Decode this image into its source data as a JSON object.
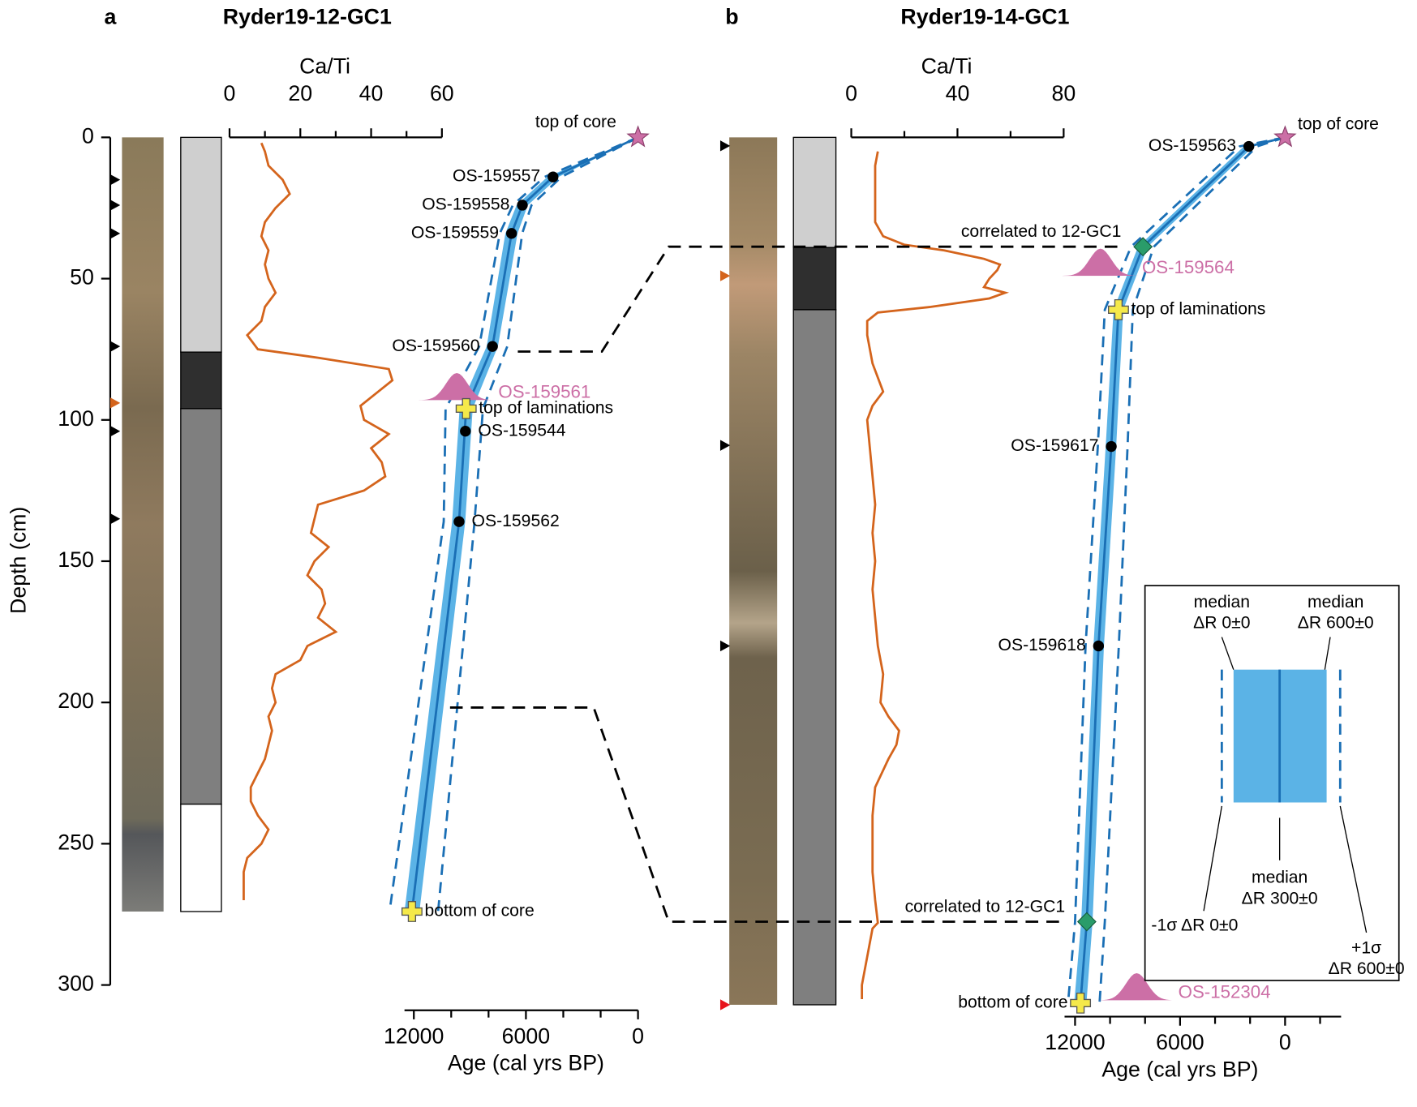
{
  "chart_data": [
    {
      "type": "age-depth",
      "panel": "a",
      "title": "Ryder19-12-GC1",
      "ylabel": "Depth (cm)",
      "ylim": [
        0,
        300
      ],
      "yticks": [
        0,
        50,
        100,
        150,
        200,
        250,
        300
      ],
      "core_bottom": 274,
      "sample_markers": [
        {
          "depth": 15,
          "color": "#000000"
        },
        {
          "depth": 24,
          "color": "#000000"
        },
        {
          "depth": 34,
          "color": "#000000"
        },
        {
          "depth": 74,
          "color": "#000000"
        },
        {
          "depth": 94,
          "color": "#d4641c"
        },
        {
          "depth": 104,
          "color": "#000000"
        },
        {
          "depth": 135,
          "color": "#000000"
        }
      ],
      "units": [
        {
          "top": 0,
          "bottom": 76,
          "color": "#cfcfcf"
        },
        {
          "top": 76,
          "bottom": 96,
          "color": "#2f2f2f"
        },
        {
          "top": 96,
          "bottom": 236,
          "color": "#7f7f7f"
        },
        {
          "top": 236,
          "bottom": 274,
          "color": "#ffffff"
        }
      ],
      "cati_label": "Ca/Ti",
      "cati_lim": [
        0,
        60
      ],
      "cati_ticks": [
        0,
        20,
        40,
        60
      ],
      "cati_minor": [
        10,
        30,
        50
      ],
      "cati": {
        "color": "#d4641c",
        "depth": [
          2,
          5,
          10,
          15,
          20,
          25,
          30,
          35,
          40,
          45,
          50,
          55,
          60,
          65,
          70,
          75,
          78,
          82,
          86,
          90,
          95,
          100,
          105,
          110,
          115,
          120,
          125,
          130,
          135,
          140,
          145,
          150,
          155,
          160,
          165,
          170,
          175,
          180,
          185,
          190,
          195,
          200,
          205,
          210,
          215,
          220,
          225,
          230,
          235,
          240,
          245,
          250,
          255,
          260,
          265,
          270
        ],
        "values": [
          9,
          10,
          11,
          15,
          17,
          13,
          10,
          9,
          11,
          10,
          11,
          13,
          10,
          9,
          5,
          8,
          25,
          45,
          46,
          42,
          37,
          38,
          45,
          40,
          43,
          44,
          38,
          25,
          24,
          23,
          28,
          24,
          22,
          26,
          27,
          25,
          30,
          22,
          20,
          13,
          12,
          13,
          11,
          12,
          11,
          10,
          8,
          6,
          6,
          8,
          11,
          9,
          5,
          4,
          4,
          4
        ]
      },
      "xlabel": "Age (cal yrs BP)",
      "xlim": [
        12500,
        0
      ],
      "xticks": [
        12000,
        6000,
        0
      ],
      "xminor": [
        10000,
        8000,
        4000,
        2000
      ],
      "age_model": {
        "band_color": "#5bb3e6",
        "line_color": "#1a6fb5",
        "depth": [
          0,
          14,
          24,
          34,
          74,
          96,
          136,
          274
        ],
        "median": [
          0,
          4550,
          6190,
          6770,
          7790,
          9200,
          9580,
          12100
        ],
        "range_young": [
          0,
          4250,
          5900,
          6450,
          7500,
          8850,
          9250,
          11700
        ],
        "range_old": [
          0,
          4850,
          6500,
          7100,
          8100,
          9550,
          9950,
          12500
        ],
        "sigma_young": [
          0,
          4100,
          5700,
          6200,
          7000,
          8300,
          8750,
          10700
        ],
        "sigma_old": [
          0,
          5000,
          6700,
          7400,
          8500,
          10300,
          10400,
          13300
        ]
      },
      "dates": [
        {
          "label": "top of core",
          "kind": "star",
          "age": 0,
          "depth": 0,
          "label_side": "left-above"
        },
        {
          "label": "OS-159557",
          "kind": "dot",
          "age": 4550,
          "depth": 14,
          "label_side": "left"
        },
        {
          "label": "OS-159558",
          "kind": "dot",
          "age": 6190,
          "depth": 24,
          "label_side": "left"
        },
        {
          "label": "OS-159559",
          "kind": "dot",
          "age": 6770,
          "depth": 34,
          "label_side": "left"
        },
        {
          "label": "OS-159560",
          "kind": "dot",
          "age": 7790,
          "depth": 74,
          "label_side": "left"
        },
        {
          "label": "OS-159561",
          "kind": "prob",
          "age": 9700,
          "depth": 93,
          "label_side": "right"
        },
        {
          "label": "top of laminations",
          "kind": "cross",
          "age": 9200,
          "depth": 96,
          "label_side": "right"
        },
        {
          "label": "OS-159544",
          "kind": "dot",
          "age": 9240,
          "depth": 104,
          "label_side": "right"
        },
        {
          "label": "OS-159562",
          "kind": "dot",
          "age": 9580,
          "depth": 136,
          "label_side": "right"
        },
        {
          "label": "bottom of core",
          "kind": "cross",
          "age": 12100,
          "depth": 274,
          "label_side": "right"
        }
      ]
    },
    {
      "type": "age-depth",
      "panel": "b",
      "title": "Ryder19-14-GC1",
      "ylim": [
        0,
        300
      ],
      "core_bottom": 307,
      "sample_markers": [
        {
          "depth": 3,
          "color": "#000000"
        },
        {
          "depth": 49,
          "color": "#d4641c"
        },
        {
          "depth": 109,
          "color": "#000000"
        },
        {
          "depth": 180,
          "color": "#000000"
        },
        {
          "depth": 307,
          "color": "#e8141c"
        }
      ],
      "units": [
        {
          "top": 0,
          "bottom": 39,
          "color": "#cfcfcf"
        },
        {
          "top": 39,
          "bottom": 61,
          "color": "#2f2f2f"
        },
        {
          "top": 61,
          "bottom": 307,
          "color": "#7f7f7f"
        }
      ],
      "cati_label": "Ca/Ti",
      "cati_lim": [
        0,
        80
      ],
      "cati_ticks": [
        0,
        40,
        80
      ],
      "cati_minor": [
        20,
        60
      ],
      "cati": {
        "color": "#d4641c",
        "depth": [
          5,
          10,
          20,
          30,
          35,
          38,
          40,
          43,
          45,
          47,
          50,
          53,
          55,
          57,
          60,
          62,
          65,
          70,
          80,
          85,
          90,
          95,
          100,
          110,
          120,
          130,
          140,
          150,
          160,
          170,
          180,
          190,
          200,
          205,
          210,
          215,
          220,
          230,
          240,
          250,
          260,
          270,
          278,
          280,
          290,
          300,
          305
        ],
        "values": [
          10,
          9,
          9,
          9,
          12,
          20,
          35,
          50,
          56,
          55,
          52,
          50,
          58,
          52,
          30,
          10,
          6,
          6,
          8,
          10,
          12,
          8,
          6,
          7,
          8,
          9,
          8,
          9,
          8,
          9,
          10,
          12,
          11,
          14,
          18,
          17,
          14,
          9,
          8,
          8,
          8,
          9,
          10,
          8,
          6,
          4,
          4
        ]
      },
      "xlabel": "Age (cal yrs BP)",
      "xlim": [
        12600,
        -3200
      ],
      "xticks": [
        12000,
        6000,
        0
      ],
      "xminor": [
        10000,
        8000,
        4000,
        2000,
        -2000
      ],
      "age_model": {
        "band_color": "#5bb3e6",
        "line_color": "#1a6fb5",
        "depth": [
          0,
          3.2,
          38.7,
          61,
          109.4,
          180,
          277.6,
          306.4
        ],
        "median": [
          0,
          2070,
          8120,
          9520,
          9930,
          10660,
          11330,
          11690
        ],
        "range_young": [
          0,
          1800,
          7850,
          9250,
          9650,
          10350,
          11000,
          11350
        ],
        "range_old": [
          0,
          2350,
          8400,
          9800,
          10250,
          10950,
          11650,
          12050
        ],
        "sigma_young": [
          0,
          1600,
          7500,
          8700,
          9000,
          9500,
          10300,
          10600
        ],
        "sigma_old": [
          0,
          2600,
          8800,
          10300,
          10700,
          11400,
          12000,
          12400
        ]
      },
      "dates": [
        {
          "label": "top of core",
          "kind": "star",
          "age": 0,
          "depth": 0,
          "label_side": "right"
        },
        {
          "label": "OS-159563",
          "kind": "dot",
          "age": 2070,
          "depth": 3.2,
          "label_side": "left"
        },
        {
          "label": "correlated to 12-GC1",
          "kind": "diamond",
          "age": 8120,
          "depth": 38.7,
          "label_side": "left-above"
        },
        {
          "label": "OS-159564",
          "kind": "prob",
          "age": 10550,
          "depth": 49,
          "label_side": "right"
        },
        {
          "label": "top of laminations",
          "kind": "cross",
          "age": 9520,
          "depth": 61,
          "label_side": "right"
        },
        {
          "label": "OS-159617",
          "kind": "dot",
          "age": 9930,
          "depth": 109.4,
          "label_side": "left"
        },
        {
          "label": "OS-159618",
          "kind": "dot",
          "age": 10660,
          "depth": 180,
          "label_side": "left"
        },
        {
          "label": "correlated to 12-GC1",
          "kind": "diamond",
          "age": 11330,
          "depth": 277.6,
          "label_side": "left-above"
        },
        {
          "label": "OS-152304",
          "kind": "prob",
          "age": 8480,
          "depth": 305.4,
          "label_side": "right"
        },
        {
          "label": "bottom of core",
          "kind": "cross",
          "age": 11690,
          "depth": 306.4,
          "label_side": "left"
        }
      ]
    }
  ],
  "correlations": [
    {
      "depth_a": 75.8,
      "depth_b": 38.7
    },
    {
      "depth_a": 201.8,
      "depth_b": 277.6
    }
  ],
  "inset_legend": {
    "items": [
      {
        "lines": [
          "median",
          "ΔR 0±0"
        ]
      },
      {
        "lines": [
          "median",
          "ΔR 600±0"
        ]
      },
      {
        "lines": [
          "median",
          "ΔR 300±0"
        ]
      },
      {
        "lines": [
          "-1σ ΔR 0±0"
        ]
      },
      {
        "lines": [
          "+1σ",
          "ΔR 600±0"
        ]
      }
    ]
  }
}
